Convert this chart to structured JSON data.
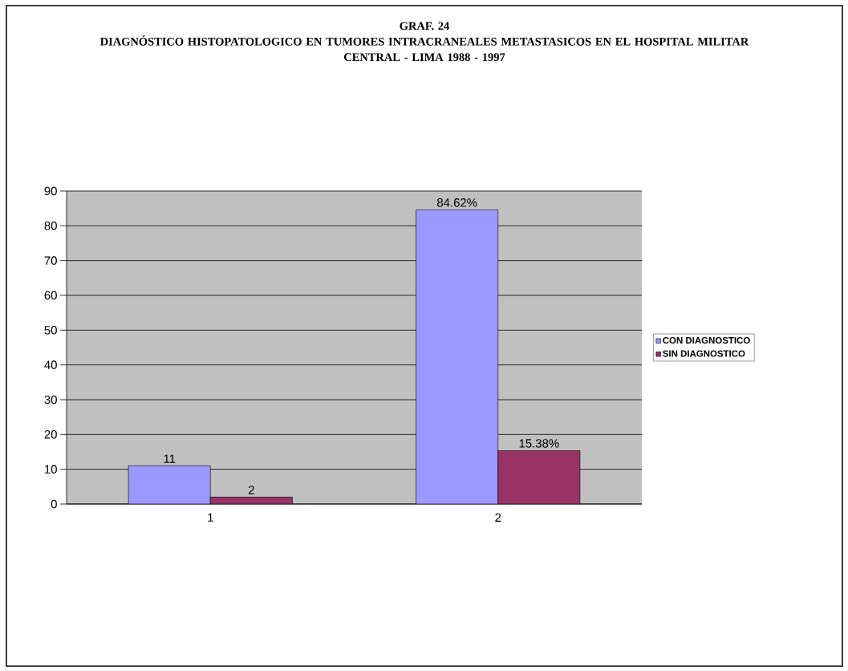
{
  "chart_data": {
    "type": "bar",
    "title": "GRAF. 24",
    "subtitle": "DIAGNÓSTICO HISTOPATOLOGICO EN TUMORES INTRACRANEALES METASTASICOS EN EL HOSPITAL MILITAR CENTRAL - LIMA 1988 - 1997",
    "categories": [
      "1",
      "2"
    ],
    "series": [
      {
        "name": "CON DIAGNOSTICO",
        "color": "#9999ff",
        "values": [
          11,
          84.62
        ],
        "value_labels": [
          "11",
          "84.62%"
        ]
      },
      {
        "name": "SIN DIAGNOSTICO",
        "color": "#993366",
        "values": [
          2,
          15.38
        ],
        "value_labels": [
          "2",
          "15.38%"
        ]
      }
    ],
    "ylim": [
      0,
      90
    ],
    "yticks": [
      0,
      10,
      20,
      30,
      40,
      50,
      60,
      70,
      80,
      90
    ],
    "grid": "y",
    "legend": "right"
  }
}
